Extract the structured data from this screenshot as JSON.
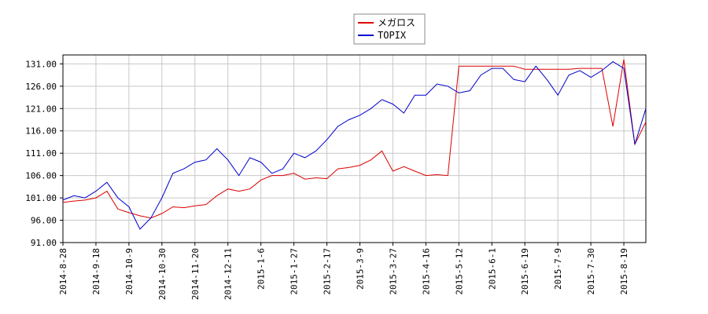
{
  "chart_data": {
    "type": "line",
    "categories": [
      "2014-8-28",
      null,
      null,
      "2014-9-18",
      null,
      null,
      "2014-10-9",
      null,
      null,
      "2014-10-30",
      null,
      null,
      "2014-11-20",
      null,
      null,
      "2014-12-11",
      null,
      null,
      "2015-1-6",
      null,
      null,
      "2015-1-27",
      null,
      null,
      "2015-2-17",
      null,
      null,
      "2015-3-9",
      null,
      null,
      "2015-3-27",
      null,
      null,
      "2015-4-16",
      null,
      null,
      "2015-5-12",
      null,
      null,
      "2015-6-1",
      null,
      null,
      "2015-6-19",
      null,
      null,
      "2015-7-9",
      null,
      null,
      "2015-7-30",
      null,
      null,
      "2015-8-19",
      null,
      null
    ],
    "series": [
      {
        "name": "メガロス",
        "color": "#dd0000",
        "values": [
          100,
          100.3,
          100.5,
          101,
          102.5,
          98.5,
          97.7,
          97,
          96.5,
          97.5,
          99,
          98.8,
          99.2,
          99.5,
          101.5,
          103,
          102.5,
          103,
          105,
          106,
          106,
          106.5,
          105.2,
          105.5,
          105.3,
          107.5,
          107.8,
          108.3,
          109.5,
          111.5,
          107,
          108,
          107,
          106,
          106.2,
          106,
          130.5,
          130.5,
          130.5,
          130.5,
          130.5,
          130.5,
          129.8,
          129.8,
          129.8,
          129.8,
          129.8,
          130,
          130,
          130,
          117,
          132,
          113,
          118
        ]
      },
      {
        "name": "TOPIX",
        "color": "#0000cc",
        "values": [
          100.5,
          101.5,
          101,
          102.5,
          104.5,
          101,
          99,
          94,
          96.5,
          101,
          106.5,
          107.5,
          109,
          109.5,
          112,
          109.5,
          106,
          110,
          109,
          106.5,
          107.5,
          111,
          110,
          111.5,
          114,
          117,
          118.5,
          119.5,
          121,
          123,
          122,
          120,
          124,
          124,
          126.5,
          126,
          124.5,
          125,
          128.5,
          130,
          130,
          127.5,
          127,
          130.5,
          127.5,
          124,
          128.5,
          129.5,
          128,
          129.5,
          131.5,
          130,
          113,
          121
        ]
      }
    ],
    "ylim": [
      91,
      133
    ],
    "yticks": [
      {
        "value": 91,
        "label": "91.00"
      },
      {
        "value": 96,
        "label": "96.00"
      },
      {
        "value": 101,
        "label": "101.00"
      },
      {
        "value": 106,
        "label": "106.00"
      },
      {
        "value": 111,
        "label": "111.00"
      },
      {
        "value": 116,
        "label": "116.00"
      },
      {
        "value": 121,
        "label": "121.00"
      },
      {
        "value": 126,
        "label": "126.00"
      },
      {
        "value": 131,
        "label": "131.00"
      }
    ],
    "grid": true,
    "legend": "top"
  }
}
